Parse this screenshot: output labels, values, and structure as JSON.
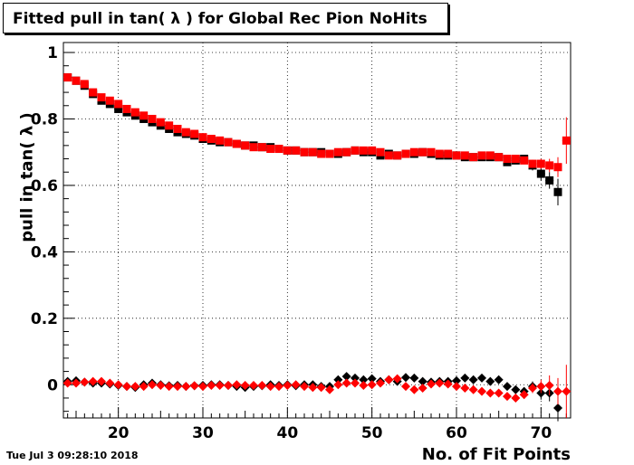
{
  "title": "Fitted pull in tan( λ ) for Global Rec Pion NoHits",
  "timestamp": "Tue Jul  3 09:28:10 2018",
  "chart_data": {
    "type": "scatter",
    "title": "Fitted pull in tan( λ ) for Global Rec Pion NoHits",
    "xlabel": "No. of Fit Points",
    "ylabel": "pull in tan( λ )",
    "xlim": [
      13.5,
      73.5
    ],
    "ylim": [
      -0.1,
      1.03
    ],
    "xticks": [
      20,
      30,
      40,
      50,
      60,
      70
    ],
    "yticks": [
      0,
      0.2,
      0.4,
      0.6,
      0.8,
      1
    ],
    "ytick_labels": [
      "0",
      "0.2",
      "0.4",
      "0.6",
      "0.8",
      "1"
    ],
    "grid": true,
    "colors": {
      "black": "#000000",
      "red": "#ff0000"
    },
    "series": [
      {
        "marker": "square",
        "color": "#000000",
        "x": [
          14,
          15,
          16,
          17,
          18,
          19,
          20,
          21,
          22,
          23,
          24,
          25,
          26,
          27,
          28,
          29,
          30,
          31,
          32,
          33,
          34,
          35,
          36,
          37,
          38,
          39,
          40,
          41,
          42,
          43,
          44,
          45,
          46,
          47,
          48,
          49,
          50,
          51,
          52,
          53,
          54,
          55,
          56,
          57,
          58,
          59,
          60,
          61,
          62,
          63,
          64,
          65,
          66,
          67,
          68,
          69,
          70,
          71,
          72,
          73
        ],
        "y": [
          0.925,
          0.915,
          0.9,
          0.875,
          0.855,
          0.845,
          0.83,
          0.82,
          0.81,
          0.8,
          0.79,
          0.78,
          0.77,
          0.76,
          0.755,
          0.75,
          0.74,
          0.735,
          0.73,
          0.73,
          0.725,
          0.72,
          0.72,
          0.715,
          0.715,
          0.71,
          0.705,
          0.705,
          0.7,
          0.7,
          0.7,
          0.695,
          0.695,
          0.7,
          0.705,
          0.7,
          0.7,
          0.69,
          0.695,
          0.69,
          0.695,
          0.695,
          0.7,
          0.695,
          0.69,
          0.69,
          0.69,
          0.685,
          0.685,
          0.685,
          0.685,
          0.685,
          0.67,
          0.675,
          0.68,
          0.66,
          0.635,
          0.615,
          0.58,
          null
        ],
        "err": [
          0.005,
          0.005,
          0.005,
          0.005,
          0.005,
          0.005,
          0.005,
          0.005,
          0.005,
          0.005,
          0.005,
          0.005,
          0.005,
          0.005,
          0.005,
          0.005,
          0.005,
          0.005,
          0.005,
          0.005,
          0.005,
          0.005,
          0.005,
          0.005,
          0.005,
          0.005,
          0.005,
          0.005,
          0.005,
          0.005,
          0.005,
          0.005,
          0.005,
          0.005,
          0.005,
          0.005,
          0.005,
          0.005,
          0.005,
          0.005,
          0.005,
          0.005,
          0.005,
          0.005,
          0.005,
          0.005,
          0.005,
          0.005,
          0.005,
          0.005,
          0.005,
          0.008,
          0.008,
          0.008,
          0.01,
          0.015,
          0.02,
          0.025,
          0.04,
          null
        ]
      },
      {
        "marker": "square",
        "color": "#ff0000",
        "x": [
          14,
          15,
          16,
          17,
          18,
          19,
          20,
          21,
          22,
          23,
          24,
          25,
          26,
          27,
          28,
          29,
          30,
          31,
          32,
          33,
          34,
          35,
          36,
          37,
          38,
          39,
          40,
          41,
          42,
          43,
          44,
          45,
          46,
          47,
          48,
          49,
          50,
          51,
          52,
          53,
          54,
          55,
          56,
          57,
          58,
          59,
          60,
          61,
          62,
          63,
          64,
          65,
          66,
          67,
          68,
          69,
          70,
          71,
          72,
          73
        ],
        "y": [
          0.925,
          0.915,
          0.905,
          0.88,
          0.865,
          0.855,
          0.845,
          0.83,
          0.82,
          0.81,
          0.8,
          0.79,
          0.78,
          0.77,
          0.76,
          0.755,
          0.745,
          0.74,
          0.735,
          0.73,
          0.725,
          0.72,
          0.715,
          0.715,
          0.71,
          0.71,
          0.705,
          0.705,
          0.7,
          0.7,
          0.695,
          0.695,
          0.7,
          0.7,
          0.705,
          0.705,
          0.705,
          0.7,
          0.69,
          0.69,
          0.695,
          0.7,
          0.7,
          0.7,
          0.695,
          0.695,
          0.69,
          0.69,
          0.685,
          0.69,
          0.69,
          0.685,
          0.68,
          0.68,
          0.675,
          0.665,
          0.665,
          0.66,
          0.655,
          0.735
        ],
        "err": [
          0.005,
          0.005,
          0.005,
          0.005,
          0.005,
          0.005,
          0.005,
          0.005,
          0.005,
          0.005,
          0.005,
          0.005,
          0.005,
          0.005,
          0.005,
          0.005,
          0.005,
          0.005,
          0.005,
          0.005,
          0.005,
          0.005,
          0.005,
          0.005,
          0.005,
          0.005,
          0.005,
          0.005,
          0.005,
          0.005,
          0.005,
          0.005,
          0.005,
          0.005,
          0.005,
          0.005,
          0.005,
          0.005,
          0.005,
          0.005,
          0.005,
          0.005,
          0.005,
          0.005,
          0.005,
          0.005,
          0.005,
          0.005,
          0.005,
          0.005,
          0.005,
          0.008,
          0.008,
          0.008,
          0.01,
          0.012,
          0.015,
          0.02,
          0.03,
          0.07
        ]
      },
      {
        "marker": "diamond",
        "color": "#000000",
        "x": [
          14,
          15,
          16,
          17,
          18,
          19,
          20,
          21,
          22,
          23,
          24,
          25,
          26,
          27,
          28,
          29,
          30,
          31,
          32,
          33,
          34,
          35,
          36,
          37,
          38,
          39,
          40,
          41,
          42,
          43,
          44,
          45,
          46,
          47,
          48,
          49,
          50,
          51,
          52,
          53,
          54,
          55,
          56,
          57,
          58,
          59,
          60,
          61,
          62,
          63,
          64,
          65,
          66,
          67,
          68,
          69,
          70,
          71,
          72,
          73
        ],
        "y": [
          0.01,
          0.012,
          0.008,
          0.005,
          0.005,
          0.002,
          -0.002,
          -0.005,
          -0.008,
          0.0,
          0.005,
          0.0,
          -0.003,
          -0.002,
          -0.005,
          -0.003,
          -0.002,
          0.0,
          0.0,
          -0.002,
          -0.005,
          -0.008,
          -0.005,
          -0.003,
          0.0,
          -0.002,
          0.0,
          -0.003,
          0.0,
          0.0,
          -0.005,
          -0.005,
          0.015,
          0.025,
          0.02,
          0.015,
          0.018,
          0.01,
          0.015,
          0.01,
          0.022,
          0.02,
          0.01,
          0.008,
          0.01,
          0.01,
          0.012,
          0.02,
          0.015,
          0.02,
          0.01,
          0.015,
          -0.005,
          -0.015,
          -0.02,
          -0.005,
          -0.025,
          -0.025,
          -0.07,
          null
        ],
        "err": [
          0.005,
          0.005,
          0.005,
          0.005,
          0.005,
          0.005,
          0.005,
          0.005,
          0.005,
          0.005,
          0.005,
          0.005,
          0.005,
          0.005,
          0.005,
          0.005,
          0.005,
          0.005,
          0.005,
          0.005,
          0.005,
          0.005,
          0.005,
          0.005,
          0.005,
          0.005,
          0.005,
          0.005,
          0.005,
          0.005,
          0.005,
          0.005,
          0.005,
          0.005,
          0.005,
          0.005,
          0.005,
          0.005,
          0.005,
          0.005,
          0.005,
          0.005,
          0.005,
          0.005,
          0.005,
          0.005,
          0.005,
          0.005,
          0.005,
          0.005,
          0.008,
          0.008,
          0.008,
          0.01,
          0.012,
          0.015,
          0.02,
          0.025,
          0.04,
          null
        ]
      },
      {
        "marker": "diamond",
        "color": "#ff0000",
        "x": [
          14,
          15,
          16,
          17,
          18,
          19,
          20,
          21,
          22,
          23,
          24,
          25,
          26,
          27,
          28,
          29,
          30,
          31,
          32,
          33,
          34,
          35,
          36,
          37,
          38,
          39,
          40,
          41,
          42,
          43,
          44,
          45,
          46,
          47,
          48,
          49,
          50,
          51,
          52,
          53,
          54,
          55,
          56,
          57,
          58,
          59,
          60,
          61,
          62,
          63,
          64,
          65,
          66,
          67,
          68,
          69,
          70,
          71,
          72,
          73
        ],
        "y": [
          0.005,
          0.005,
          0.008,
          0.01,
          0.01,
          0.005,
          0.0,
          -0.005,
          -0.005,
          -0.005,
          0.0,
          -0.002,
          -0.005,
          -0.005,
          -0.005,
          -0.003,
          -0.005,
          -0.002,
          -0.002,
          -0.002,
          0.0,
          -0.002,
          -0.002,
          -0.002,
          -0.005,
          -0.005,
          -0.002,
          0.0,
          -0.005,
          -0.008,
          -0.008,
          -0.015,
          0.0,
          0.005,
          0.005,
          -0.002,
          0.0,
          0.005,
          0.015,
          0.018,
          -0.005,
          -0.015,
          -0.01,
          0.002,
          0.005,
          0.002,
          -0.005,
          -0.01,
          -0.015,
          -0.02,
          -0.025,
          -0.025,
          -0.035,
          -0.04,
          -0.03,
          -0.01,
          -0.005,
          -0.002,
          -0.02,
          -0.02
        ],
        "err": [
          0.005,
          0.005,
          0.005,
          0.005,
          0.005,
          0.005,
          0.005,
          0.005,
          0.005,
          0.005,
          0.005,
          0.005,
          0.005,
          0.005,
          0.005,
          0.005,
          0.005,
          0.005,
          0.005,
          0.005,
          0.005,
          0.005,
          0.005,
          0.005,
          0.005,
          0.005,
          0.005,
          0.005,
          0.005,
          0.005,
          0.005,
          0.005,
          0.005,
          0.005,
          0.005,
          0.005,
          0.005,
          0.005,
          0.005,
          0.005,
          0.005,
          0.005,
          0.005,
          0.005,
          0.005,
          0.005,
          0.005,
          0.005,
          0.005,
          0.005,
          0.008,
          0.008,
          0.008,
          0.01,
          0.012,
          0.015,
          0.02,
          0.03,
          0.04,
          0.08
        ]
      }
    ]
  }
}
